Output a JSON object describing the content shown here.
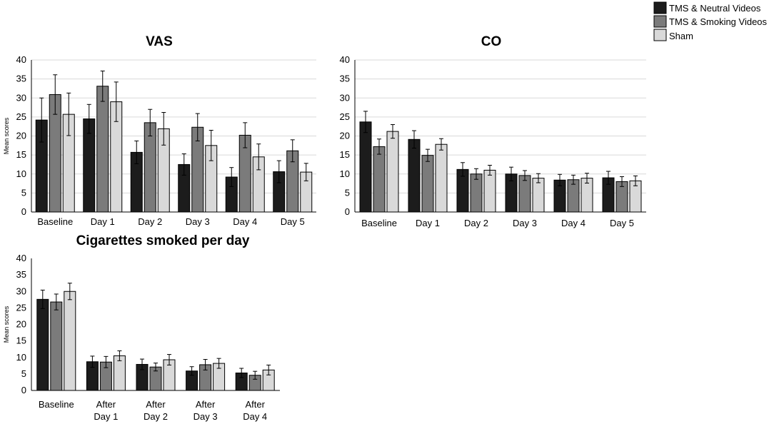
{
  "colors": {
    "series": [
      "#1c1c1c",
      "#7b7b7b",
      "#d9d9d9"
    ],
    "grid": "#d9d9d9",
    "axis": "#000000",
    "stroke": "#000000"
  },
  "legend": {
    "entries": [
      "TMS & Neutral Videos",
      "TMS & Smoking Videos",
      "Sham"
    ]
  },
  "chart_data": [
    {
      "type": "bar",
      "title": "VAS",
      "xlabel": "",
      "ylabel": "Mean scores",
      "ylim": [
        0,
        40
      ],
      "yticks": [
        0,
        5,
        10,
        15,
        20,
        25,
        30,
        35,
        40
      ],
      "categories": [
        [
          "Baseline"
        ],
        [
          "Day 1"
        ],
        [
          "Day 2"
        ],
        [
          "Day 3"
        ],
        [
          "Day 4"
        ],
        [
          "Day 5"
        ]
      ],
      "grid": true,
      "series": [
        {
          "name": "TMS & Neutral Videos",
          "values": [
            24.2,
            24.5,
            15.7,
            12.5,
            9.2,
            10.6
          ],
          "errors": [
            5.8,
            3.8,
            3.0,
            2.8,
            2.5,
            2.9
          ]
        },
        {
          "name": "TMS & Smoking Videos",
          "values": [
            30.9,
            33.1,
            23.5,
            22.3,
            20.2,
            16.1
          ],
          "errors": [
            5.2,
            4.0,
            3.5,
            3.6,
            3.3,
            2.9
          ]
        },
        {
          "name": "Sham",
          "values": [
            25.7,
            29.0,
            21.9,
            17.5,
            14.5,
            10.5
          ],
          "errors": [
            5.6,
            5.2,
            4.3,
            4.0,
            3.4,
            2.3
          ]
        }
      ]
    },
    {
      "type": "bar",
      "title": "CO",
      "xlabel": "",
      "ylabel": "",
      "ylim": [
        0,
        40
      ],
      "yticks": [
        0,
        5,
        10,
        15,
        20,
        25,
        30,
        35,
        40
      ],
      "categories": [
        [
          "Baseline"
        ],
        [
          "Day 1"
        ],
        [
          "Day 2"
        ],
        [
          "Day 3"
        ],
        [
          "Day 4"
        ],
        [
          "Day 5"
        ]
      ],
      "grid": true,
      "series": [
        {
          "name": "TMS & Neutral Videos",
          "values": [
            23.7,
            19.1,
            11.2,
            10.0,
            8.4,
            9.0
          ],
          "errors": [
            2.8,
            2.3,
            1.8,
            1.8,
            1.5,
            1.7
          ]
        },
        {
          "name": "TMS & Smoking Videos",
          "values": [
            17.2,
            14.9,
            10.0,
            9.6,
            8.5,
            8.0
          ],
          "errors": [
            2.0,
            1.6,
            1.4,
            1.3,
            1.2,
            1.3
          ]
        },
        {
          "name": "Sham",
          "values": [
            21.2,
            17.8,
            11.0,
            8.9,
            8.9,
            8.2
          ],
          "errors": [
            1.8,
            1.5,
            1.3,
            1.2,
            1.3,
            1.3
          ]
        }
      ]
    },
    {
      "type": "bar",
      "title": "Cigarettes smoked per day",
      "xlabel": "",
      "ylabel": "Mean scores",
      "ylim": [
        0,
        40
      ],
      "yticks": [
        0,
        5,
        10,
        15,
        20,
        25,
        30,
        35,
        40
      ],
      "categories": [
        [
          "Baseline"
        ],
        [
          "After",
          "Day 1"
        ],
        [
          "After",
          "Day 2"
        ],
        [
          "After",
          "Day 3"
        ],
        [
          "After",
          "Day 4"
        ]
      ],
      "grid": false,
      "series": [
        {
          "name": "TMS & Neutral Videos",
          "values": [
            27.6,
            8.7,
            7.9,
            5.9,
            5.3
          ],
          "errors": [
            2.8,
            1.7,
            1.6,
            1.3,
            1.4
          ]
        },
        {
          "name": "TMS & Smoking Videos",
          "values": [
            26.8,
            8.6,
            7.1,
            7.8,
            4.6
          ],
          "errors": [
            2.4,
            1.7,
            1.2,
            1.6,
            1.2
          ]
        },
        {
          "name": "Sham",
          "values": [
            30.0,
            10.5,
            9.3,
            8.2,
            6.2
          ],
          "errors": [
            2.5,
            1.5,
            1.6,
            1.5,
            1.5
          ]
        }
      ]
    }
  ]
}
